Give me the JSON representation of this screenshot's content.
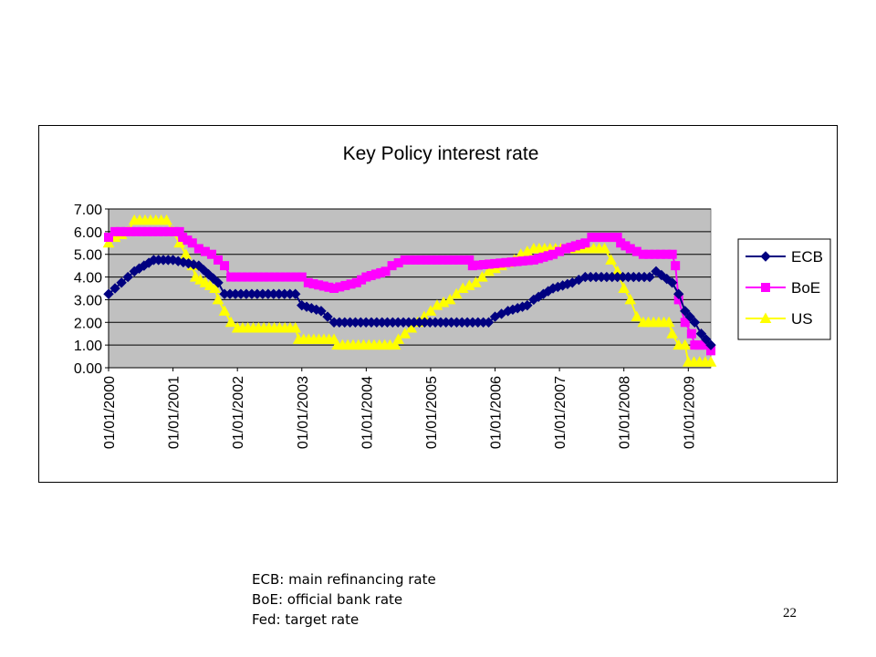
{
  "chart_data": {
    "type": "line",
    "title": "Key Policy interest rate",
    "xlabel": "",
    "ylabel": "",
    "ylim": [
      0,
      7
    ],
    "yticks": [
      "0.00",
      "1.00",
      "2.00",
      "3.00",
      "4.00",
      "5.00",
      "6.00",
      "7.00"
    ],
    "xticks": [
      "01/01/2000",
      "01/01/2001",
      "01/01/2002",
      "01/01/2003",
      "01/01/2004",
      "01/01/2005",
      "01/01/2006",
      "01/01/2007",
      "01/01/2008",
      "01/01/2009"
    ],
    "x_start_year": 2000,
    "grid": true,
    "legend_position": "right",
    "background_color": "#c0c0c0",
    "series": [
      {
        "name": "ECB",
        "color": "#000080",
        "marker": "diamond",
        "points": [
          [
            2000.0,
            3.25
          ],
          [
            2000.1,
            3.5
          ],
          [
            2000.2,
            3.75
          ],
          [
            2000.4,
            4.25
          ],
          [
            2000.7,
            4.75
          ],
          [
            2001.0,
            4.75
          ],
          [
            2001.4,
            4.5
          ],
          [
            2001.7,
            3.75
          ],
          [
            2001.8,
            3.25
          ],
          [
            2002.9,
            3.25
          ],
          [
            2003.0,
            2.75
          ],
          [
            2003.3,
            2.5
          ],
          [
            2003.5,
            2.0
          ],
          [
            2005.9,
            2.0
          ],
          [
            2006.0,
            2.25
          ],
          [
            2006.2,
            2.5
          ],
          [
            2006.5,
            2.75
          ],
          [
            2006.6,
            3.0
          ],
          [
            2006.9,
            3.5
          ],
          [
            2007.2,
            3.75
          ],
          [
            2007.4,
            4.0
          ],
          [
            2008.4,
            4.0
          ],
          [
            2008.5,
            4.25
          ],
          [
            2008.75,
            3.75
          ],
          [
            2008.85,
            3.25
          ],
          [
            2008.95,
            2.5
          ],
          [
            2009.1,
            2.0
          ],
          [
            2009.2,
            1.5
          ],
          [
            2009.35,
            1.0
          ]
        ]
      },
      {
        "name": "BoE",
        "color": "#ff00ff",
        "marker": "square",
        "points": [
          [
            2000.0,
            5.75
          ],
          [
            2000.1,
            6.0
          ],
          [
            2001.1,
            6.0
          ],
          [
            2001.15,
            5.75
          ],
          [
            2001.3,
            5.5
          ],
          [
            2001.4,
            5.25
          ],
          [
            2001.6,
            5.0
          ],
          [
            2001.7,
            4.75
          ],
          [
            2001.8,
            4.5
          ],
          [
            2001.9,
            4.0
          ],
          [
            2003.0,
            4.0
          ],
          [
            2003.1,
            3.75
          ],
          [
            2003.5,
            3.5
          ],
          [
            2003.85,
            3.75
          ],
          [
            2004.0,
            4.0
          ],
          [
            2004.3,
            4.25
          ],
          [
            2004.4,
            4.5
          ],
          [
            2004.6,
            4.75
          ],
          [
            2005.6,
            4.75
          ],
          [
            2005.65,
            4.5
          ],
          [
            2006.6,
            4.75
          ],
          [
            2006.9,
            5.0
          ],
          [
            2007.1,
            5.25
          ],
          [
            2007.4,
            5.5
          ],
          [
            2007.5,
            5.75
          ],
          [
            2007.9,
            5.75
          ],
          [
            2007.95,
            5.5
          ],
          [
            2008.1,
            5.25
          ],
          [
            2008.3,
            5.0
          ],
          [
            2008.75,
            5.0
          ],
          [
            2008.8,
            4.5
          ],
          [
            2008.85,
            3.0
          ],
          [
            2008.95,
            2.0
          ],
          [
            2009.05,
            1.5
          ],
          [
            2009.1,
            1.0
          ],
          [
            2009.25,
            1.0
          ],
          [
            2009.35,
            0.75
          ]
        ]
      },
      {
        "name": "US",
        "color": "#ffff00",
        "marker": "triangle",
        "points": [
          [
            2000.0,
            5.5
          ],
          [
            2000.1,
            5.75
          ],
          [
            2000.3,
            6.0
          ],
          [
            2000.4,
            6.5
          ],
          [
            2000.9,
            6.5
          ],
          [
            2001.0,
            6.0
          ],
          [
            2001.1,
            5.5
          ],
          [
            2001.2,
            5.0
          ],
          [
            2001.3,
            4.5
          ],
          [
            2001.35,
            4.0
          ],
          [
            2001.5,
            3.75
          ],
          [
            2001.65,
            3.5
          ],
          [
            2001.7,
            3.0
          ],
          [
            2001.8,
            2.5
          ],
          [
            2001.9,
            2.0
          ],
          [
            2002.0,
            1.75
          ],
          [
            2002.9,
            1.75
          ],
          [
            2002.95,
            1.25
          ],
          [
            2003.5,
            1.25
          ],
          [
            2003.55,
            1.0
          ],
          [
            2004.45,
            1.0
          ],
          [
            2004.5,
            1.25
          ],
          [
            2004.6,
            1.5
          ],
          [
            2004.7,
            1.75
          ],
          [
            2004.9,
            2.25
          ],
          [
            2005.1,
            2.75
          ],
          [
            2005.3,
            3.0
          ],
          [
            2005.5,
            3.5
          ],
          [
            2005.7,
            3.75
          ],
          [
            2005.9,
            4.25
          ],
          [
            2006.1,
            4.5
          ],
          [
            2006.3,
            4.75
          ],
          [
            2006.4,
            5.0
          ],
          [
            2006.6,
            5.25
          ],
          [
            2007.7,
            5.25
          ],
          [
            2007.8,
            4.75
          ],
          [
            2007.9,
            4.25
          ],
          [
            2008.0,
            3.5
          ],
          [
            2008.1,
            3.0
          ],
          [
            2008.2,
            2.25
          ],
          [
            2008.3,
            2.0
          ],
          [
            2008.7,
            2.0
          ],
          [
            2008.75,
            1.5
          ],
          [
            2008.85,
            1.0
          ],
          [
            2008.95,
            1.0
          ],
          [
            2009.0,
            0.25
          ],
          [
            2009.35,
            0.25
          ]
        ]
      }
    ]
  },
  "notes": [
    "ECB: main refinancing rate",
    "BoE: official bank rate",
    "Fed: target rate"
  ],
  "page_number": "22"
}
